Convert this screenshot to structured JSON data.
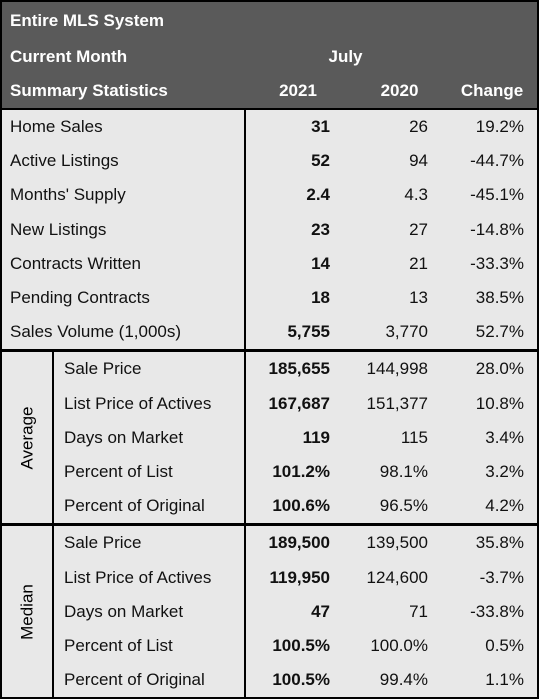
{
  "header": {
    "title": "Entire MLS System",
    "period_label": "Current Month",
    "month": "July",
    "stats_label": "Summary Statistics",
    "columns": [
      "2021",
      "2020",
      "Change"
    ]
  },
  "summary": {
    "rows": [
      [
        "Home Sales",
        "31",
        "26",
        "19.2%"
      ],
      [
        "Active Listings",
        "52",
        "94",
        "-44.7%"
      ],
      [
        "Months' Supply",
        "2.4",
        "4.3",
        "-45.1%"
      ],
      [
        "New Listings",
        "23",
        "27",
        "-14.8%"
      ],
      [
        "Contracts Written",
        "14",
        "21",
        "-33.3%"
      ],
      [
        "Pending Contracts",
        "18",
        "13",
        "38.5%"
      ],
      [
        "Sales Volume (1,000s)",
        "5,755",
        "3,770",
        "52.7%"
      ]
    ]
  },
  "average": {
    "label": "Average",
    "rows": [
      [
        "Sale Price",
        "185,655",
        "144,998",
        "28.0%"
      ],
      [
        "List Price of Actives",
        "167,687",
        "151,377",
        "10.8%"
      ],
      [
        "Days on Market",
        "119",
        "115",
        "3.4%"
      ],
      [
        "Percent of List",
        "101.2%",
        "98.1%",
        "3.2%"
      ],
      [
        "Percent of Original",
        "100.6%",
        "96.5%",
        "4.2%"
      ]
    ]
  },
  "median": {
    "label": "Median",
    "rows": [
      [
        "Sale Price",
        "189,500",
        "139,500",
        "35.8%"
      ],
      [
        "List Price of Actives",
        "119,950",
        "124,600",
        "-3.7%"
      ],
      [
        "Days on Market",
        "47",
        "71",
        "-33.8%"
      ],
      [
        "Percent of List",
        "100.5%",
        "100.0%",
        "0.5%"
      ],
      [
        "Percent of Original",
        "100.5%",
        "99.4%",
        "1.1%"
      ]
    ]
  }
}
